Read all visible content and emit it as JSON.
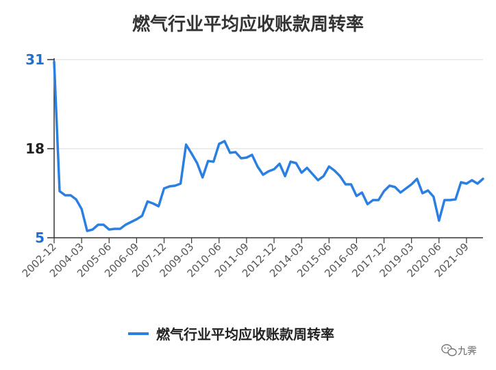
{
  "chart_data": {
    "type": "line",
    "title": "燃气行业平均应收账款周转率",
    "xlabel": "",
    "ylabel": "",
    "ylim": [
      5,
      31
    ],
    "yticks": [
      5,
      18,
      31
    ],
    "xticks": [
      "2002-12",
      "2004-03",
      "2005-06",
      "2006-09",
      "2007-12",
      "2009-03",
      "2010-06",
      "2011-09",
      "2012-12",
      "2014-03",
      "2015-06",
      "2016-09",
      "2017-12",
      "2019-03",
      "2020-06",
      "2021-09"
    ],
    "grid": true,
    "legend": "bottom",
    "series": [
      {
        "name": "燃气行业平均应收账款周转率",
        "color": "#2a7fe0",
        "x": [
          "2002-12",
          "2003-03",
          "2003-06",
          "2003-09",
          "2003-12",
          "2004-03",
          "2004-06",
          "2004-09",
          "2004-12",
          "2005-03",
          "2005-06",
          "2005-09",
          "2005-12",
          "2006-03",
          "2006-06",
          "2006-09",
          "2006-12",
          "2007-03",
          "2007-06",
          "2007-09",
          "2007-12",
          "2008-03",
          "2008-06",
          "2008-09",
          "2008-12",
          "2009-03",
          "2009-06",
          "2009-09",
          "2009-12",
          "2010-03",
          "2010-06",
          "2010-09",
          "2010-12",
          "2011-03",
          "2011-06",
          "2011-09",
          "2011-12",
          "2012-03",
          "2012-06",
          "2012-09",
          "2012-12",
          "2013-03",
          "2013-06",
          "2013-09",
          "2013-12",
          "2014-03",
          "2014-06",
          "2014-09",
          "2014-12",
          "2015-03",
          "2015-06",
          "2015-09",
          "2015-12",
          "2016-03",
          "2016-06",
          "2016-09",
          "2016-12",
          "2017-03",
          "2017-06",
          "2017-09",
          "2017-12",
          "2018-03",
          "2018-06",
          "2018-09",
          "2018-12",
          "2019-03",
          "2019-06",
          "2019-09",
          "2019-12",
          "2020-03",
          "2020-06",
          "2020-09",
          "2020-12",
          "2021-03",
          "2021-06",
          "2021-09",
          "2021-12",
          "2022-03",
          "2022-06"
        ],
        "values": [
          30.7,
          11.8,
          11.2,
          11.2,
          10.6,
          9.2,
          6.0,
          6.2,
          6.9,
          6.9,
          6.2,
          6.3,
          6.3,
          6.9,
          7.3,
          7.7,
          8.2,
          10.3,
          10.0,
          9.6,
          12.2,
          12.5,
          12.6,
          12.9,
          18.6,
          17.3,
          15.9,
          13.8,
          16.2,
          16.1,
          18.7,
          19.1,
          17.4,
          17.5,
          16.6,
          16.7,
          17.1,
          15.4,
          14.2,
          14.7,
          15.0,
          15.8,
          14.0,
          16.1,
          15.9,
          14.5,
          15.2,
          14.3,
          13.4,
          14.0,
          15.4,
          14.8,
          14.0,
          12.8,
          12.8,
          11.1,
          11.6,
          9.9,
          10.5,
          10.5,
          11.8,
          12.6,
          12.4,
          11.6,
          12.2,
          12.8,
          13.6,
          11.5,
          11.9,
          11.0,
          7.5,
          10.5,
          10.5,
          10.6,
          13.1,
          12.9,
          13.4,
          12.9,
          13.6
        ]
      }
    ]
  },
  "watermark": {
    "text": "九霁",
    "icon": "wechat-icon"
  }
}
